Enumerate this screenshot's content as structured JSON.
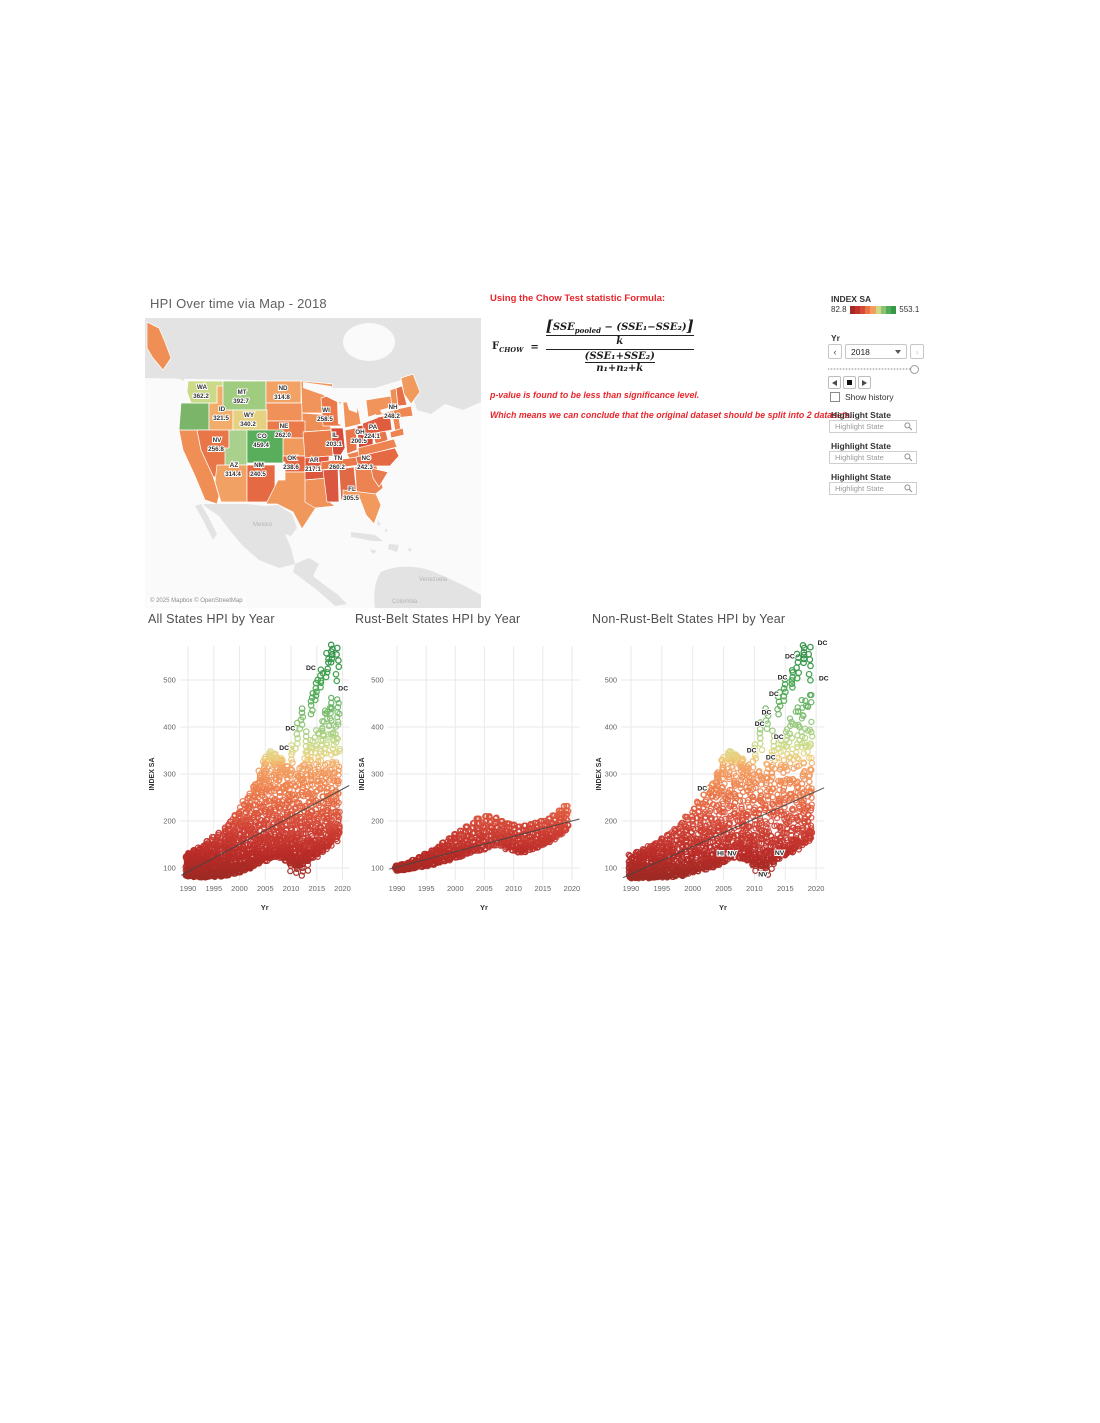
{
  "map": {
    "title": "HPI Over time via Map  - 2018",
    "attribution": "© 2025 Mapbox  © OpenStreetMap",
    "states": [
      {
        "abbr": "WA",
        "value": "362.2"
      },
      {
        "abbr": "MT",
        "value": "392.7"
      },
      {
        "abbr": "ND",
        "value": "314.8"
      },
      {
        "abbr": "ID",
        "value": "321.5"
      },
      {
        "abbr": "WY",
        "value": "340.2"
      },
      {
        "abbr": "NE",
        "value": "262.0"
      },
      {
        "abbr": "NV",
        "value": "256.8"
      },
      {
        "abbr": "CO",
        "value": "459.4"
      },
      {
        "abbr": "AZ",
        "value": "314.4"
      },
      {
        "abbr": "NM",
        "value": "240.5"
      },
      {
        "abbr": "OK",
        "value": "238.6"
      },
      {
        "abbr": "AR",
        "value": "217.1"
      },
      {
        "abbr": "TN",
        "value": "260.2"
      },
      {
        "abbr": "NC",
        "value": "242.3"
      },
      {
        "abbr": "WI",
        "value": "258.5"
      },
      {
        "abbr": "IL",
        "value": "203.1"
      },
      {
        "abbr": "OH",
        "value": "200.5"
      },
      {
        "abbr": "PA",
        "value": "224.1"
      },
      {
        "abbr": "NH",
        "value": "248.2"
      },
      {
        "abbr": "FL",
        "value": "305.5"
      }
    ],
    "unlabeled_fills": {
      "CA": "#ef8f55",
      "OR": "#7ab56a",
      "UT": "#a9d08c",
      "SD": "#f09159",
      "KS": "#f09a5e",
      "TX": "#f0985c",
      "MN": "#f0945c",
      "IA": "#ef8f58",
      "MO": "#ea7d4c",
      "LA": "#ef9159",
      "MS": "#da5742",
      "AL": "#e06a46",
      "GA": "#ec8350",
      "SC": "#e87c4e",
      "VA": "#ec8350",
      "WV": "#e8764a",
      "KY": "#ec8350",
      "IN": "#e8764a",
      "MI": "#f0945c",
      "NY": "#f0945c",
      "NJ": "#ee8752",
      "MD": "#ec8350",
      "MA": "#ee8752",
      "VT": "#ef8f58",
      "ME": "#f09a5e",
      "AK": "#ef8f55"
    },
    "place_labels": [
      "Mexico",
      "Venezuela",
      "Colombia"
    ]
  },
  "notes": {
    "heading": "Using the Chow Test statistic Formula:",
    "p_value": "p-value is found to be less than significance level.",
    "conclusion": "Which means we can conclude that the original dataset should be split into 2 datasets."
  },
  "formula": {
    "lhs": "F",
    "lhs_sub": "CHOW",
    "equals": "=",
    "lbracket": "[",
    "rbracket": "]",
    "sse": "SSE",
    "pooled_sub": "pooled",
    "num_rest": " − (SSE₁−SSE₂)",
    "k": "k",
    "den_top": "(SSE₁+SSE₂)",
    "den_bot": "n₁+n₂+k"
  },
  "legend": {
    "title": "INDEX SA",
    "min": "82.8",
    "max": "553.1"
  },
  "controls": {
    "yr_label": "Yr",
    "year": "2018",
    "prev": "‹",
    "next": "›",
    "show_history": "Show history",
    "highlight_label": "Highlight State",
    "highlight_placeholder": "Highlight State"
  },
  "color_scale": [
    [
      82.8,
      "#9e2a25"
    ],
    [
      130,
      "#b92b27"
    ],
    [
      170,
      "#c93a30"
    ],
    [
      200,
      "#d64a38"
    ],
    [
      230,
      "#e2603f"
    ],
    [
      255,
      "#e97547"
    ],
    [
      280,
      "#ef8750"
    ],
    [
      305,
      "#f29a5d"
    ],
    [
      318,
      "#f2a466"
    ],
    [
      332,
      "#eec873"
    ],
    [
      345,
      "#e0d78a"
    ],
    [
      365,
      "#c8da87"
    ],
    [
      395,
      "#9ccb7d"
    ],
    [
      430,
      "#78bb6c"
    ],
    [
      465,
      "#53ab58"
    ],
    [
      505,
      "#3da14c"
    ],
    [
      553.1,
      "#2e9145"
    ]
  ],
  "chart_data": [
    {
      "type": "scatter",
      "title": "All States HPI by Year",
      "xlabel": "Yr",
      "ylabel": "INDEX SA",
      "x_ticks": [
        1990,
        1995,
        2000,
        2005,
        2010,
        2015,
        2020
      ],
      "y_ticks": [
        100,
        200,
        300,
        400,
        500
      ],
      "x_range": [
        1988.4,
        2021.4
      ],
      "ylim": [
        60,
        585
      ],
      "n_series": 34,
      "skew": 1.7,
      "reps": 2,
      "envelope": [
        [
          1990,
          83,
          132
        ],
        [
          1991,
          83,
          138
        ],
        [
          1992,
          82,
          144
        ],
        [
          1993,
          82,
          150
        ],
        [
          1994,
          83,
          157
        ],
        [
          1995,
          83,
          166
        ],
        [
          1996,
          84,
          175
        ],
        [
          1997,
          85,
          186
        ],
        [
          1998,
          87,
          199
        ],
        [
          1999,
          90,
          213
        ],
        [
          2000,
          93,
          229
        ],
        [
          2001,
          97,
          244
        ],
        [
          2002,
          101,
          259
        ],
        [
          2003,
          106,
          278
        ],
        [
          2004,
          111,
          302
        ],
        [
          2005,
          117,
          332
        ],
        [
          2006,
          123,
          347
        ],
        [
          2007,
          126,
          342
        ],
        [
          2008,
          124,
          330
        ],
        [
          2009,
          118,
          312
        ],
        [
          2010,
          112,
          314
        ],
        [
          2011,
          108,
          306
        ],
        [
          2012,
          110,
          322
        ],
        [
          2013,
          117,
          352
        ],
        [
          2014,
          124,
          372
        ],
        [
          2015,
          131,
          395
        ],
        [
          2016,
          139,
          418
        ],
        [
          2017,
          148,
          442
        ],
        [
          2018,
          158,
          462
        ],
        [
          2019,
          168,
          468
        ]
      ],
      "dc": [
        [
          2003,
          252,
          278
        ],
        [
          2004,
          268,
          305
        ],
        [
          2005,
          300,
          335
        ],
        [
          2006,
          330,
          348
        ],
        [
          2007,
          328,
          342
        ],
        [
          2008,
          308,
          332
        ],
        [
          2009,
          298,
          318
        ],
        [
          2010,
          325,
          362
        ],
        [
          2011,
          352,
          408
        ],
        [
          2012,
          398,
          438
        ],
        [
          2013,
          338,
          392
        ],
        [
          2014,
          428,
          472
        ],
        [
          2015,
          458,
          500
        ],
        [
          2016,
          486,
          522
        ],
        [
          2017,
          505,
          556
        ],
        [
          2018,
          538,
          575
        ],
        [
          2019,
          500,
          570
        ]
      ],
      "nv": [
        [
          2008,
          150,
          190
        ],
        [
          2009,
          118,
          152
        ],
        [
          2010,
          95,
          128
        ],
        [
          2011,
          88,
          112
        ],
        [
          2012,
          85,
          104
        ],
        [
          2013,
          96,
          128
        ],
        [
          2014,
          124,
          150
        ],
        [
          2015,
          126,
          144
        ],
        [
          2016,
          132,
          152
        ],
        [
          2017,
          140,
          160
        ],
        [
          2018,
          150,
          168
        ],
        [
          2019,
          158,
          176
        ]
      ],
      "trend": [
        [
          1990,
          92
        ],
        [
          2020,
          268
        ]
      ],
      "annotations": [
        {
          "label": "DC",
          "year": 2015.6,
          "value": 527,
          "side": "left"
        },
        {
          "label": "DC",
          "year": 2018.4,
          "value": 483,
          "side": "right"
        },
        {
          "label": "DC",
          "year": 2011.6,
          "value": 398,
          "side": "left"
        },
        {
          "label": "DC",
          "year": 2010.4,
          "value": 357,
          "side": "left"
        }
      ]
    },
    {
      "type": "scatter",
      "title": "Rust-Belt States HPI by Year",
      "xlabel": "Yr",
      "ylabel": "INDEX SA",
      "x_ticks": [
        1990,
        1995,
        2000,
        2005,
        2010,
        2015,
        2020
      ],
      "y_ticks": [
        100,
        200,
        300,
        400,
        500
      ],
      "x_range": [
        1988.4,
        2021.4
      ],
      "ylim": [
        60,
        585
      ],
      "n_series": 8,
      "skew": 1.25,
      "reps": 4,
      "envelope": [
        [
          1990,
          95,
          105
        ],
        [
          1991,
          96,
          108
        ],
        [
          1992,
          98,
          112
        ],
        [
          1993,
          100,
          117
        ],
        [
          1994,
          103,
          123
        ],
        [
          1995,
          105,
          130
        ],
        [
          1996,
          108,
          137
        ],
        [
          1997,
          111,
          145
        ],
        [
          1998,
          114,
          154
        ],
        [
          1999,
          118,
          163
        ],
        [
          2000,
          122,
          172
        ],
        [
          2001,
          126,
          180
        ],
        [
          2002,
          130,
          188
        ],
        [
          2003,
          134,
          196
        ],
        [
          2004,
          138,
          205
        ],
        [
          2005,
          142,
          210
        ],
        [
          2006,
          146,
          210
        ],
        [
          2007,
          150,
          207
        ],
        [
          2008,
          148,
          200
        ],
        [
          2009,
          142,
          195
        ],
        [
          2010,
          138,
          192
        ],
        [
          2011,
          134,
          188
        ],
        [
          2012,
          136,
          190
        ],
        [
          2013,
          140,
          193
        ],
        [
          2014,
          145,
          196
        ],
        [
          2015,
          150,
          200
        ],
        [
          2016,
          156,
          205
        ],
        [
          2017,
          163,
          212
        ],
        [
          2018,
          172,
          222
        ],
        [
          2019,
          182,
          232
        ]
      ],
      "dc": [],
      "nv": [],
      "trend": [
        [
          1990,
          102
        ],
        [
          2020,
          200
        ]
      ],
      "annotations": []
    },
    {
      "type": "scatter",
      "title": "Non-Rust-Belt States HPI by Year",
      "xlabel": "Yr",
      "ylabel": "INDEX SA",
      "x_ticks": [
        1990,
        1995,
        2000,
        2005,
        2010,
        2015,
        2020
      ],
      "y_ticks": [
        100,
        200,
        300,
        400,
        500
      ],
      "x_range": [
        1988.4,
        2021.4
      ],
      "ylim": [
        60,
        585
      ],
      "n_series": 30,
      "skew": 1.7,
      "reps": 2,
      "envelope": [
        [
          1990,
          80,
          128
        ],
        [
          1991,
          80,
          134
        ],
        [
          1992,
          80,
          140
        ],
        [
          1993,
          80,
          147
        ],
        [
          1994,
          81,
          154
        ],
        [
          1995,
          81,
          163
        ],
        [
          1996,
          82,
          172
        ],
        [
          1997,
          83,
          183
        ],
        [
          1998,
          85,
          196
        ],
        [
          1999,
          88,
          210
        ],
        [
          2000,
          91,
          226
        ],
        [
          2001,
          95,
          241
        ],
        [
          2002,
          99,
          256
        ],
        [
          2003,
          104,
          276
        ],
        [
          2004,
          109,
          300
        ],
        [
          2005,
          115,
          332
        ],
        [
          2006,
          121,
          347
        ],
        [
          2007,
          124,
          342
        ],
        [
          2008,
          122,
          330
        ],
        [
          2009,
          116,
          312
        ],
        [
          2010,
          110,
          314
        ],
        [
          2011,
          106,
          306
        ],
        [
          2012,
          108,
          322
        ],
        [
          2013,
          115,
          352
        ],
        [
          2014,
          122,
          372
        ],
        [
          2015,
          129,
          395
        ],
        [
          2016,
          137,
          418
        ],
        [
          2017,
          146,
          442
        ],
        [
          2018,
          156,
          462
        ],
        [
          2019,
          166,
          468
        ]
      ],
      "dc": [
        [
          2003,
          252,
          278
        ],
        [
          2004,
          268,
          305
        ],
        [
          2005,
          300,
          335
        ],
        [
          2006,
          330,
          348
        ],
        [
          2007,
          328,
          342
        ],
        [
          2008,
          308,
          332
        ],
        [
          2009,
          298,
          318
        ],
        [
          2010,
          325,
          362
        ],
        [
          2011,
          352,
          408
        ],
        [
          2012,
          398,
          438
        ],
        [
          2013,
          338,
          392
        ],
        [
          2014,
          428,
          472
        ],
        [
          2015,
          458,
          500
        ],
        [
          2016,
          486,
          522
        ],
        [
          2017,
          505,
          556
        ],
        [
          2018,
          538,
          575
        ],
        [
          2019,
          500,
          570
        ]
      ],
      "nv": [
        [
          2008,
          150,
          190
        ],
        [
          2009,
          118,
          152
        ],
        [
          2010,
          95,
          128
        ],
        [
          2011,
          88,
          112
        ],
        [
          2012,
          85,
          104
        ],
        [
          2013,
          96,
          128
        ],
        [
          2014,
          124,
          150
        ],
        [
          2015,
          126,
          144
        ],
        [
          2016,
          132,
          152
        ],
        [
          2017,
          140,
          160
        ],
        [
          2018,
          150,
          168
        ],
        [
          2019,
          158,
          176
        ]
      ],
      "trend": [
        [
          1990,
          87
        ],
        [
          2020,
          263
        ]
      ],
      "annotations": [
        {
          "label": "DC",
          "year": 2019.6,
          "value": 580,
          "side": "right"
        },
        {
          "label": "DC",
          "year": 2017.2,
          "value": 551,
          "side": "left"
        },
        {
          "label": "DC",
          "year": 2016.0,
          "value": 507,
          "side": "left"
        },
        {
          "label": "DC",
          "year": 2019.8,
          "value": 505,
          "side": "right"
        },
        {
          "label": "DC",
          "year": 2014.6,
          "value": 472,
          "side": "left"
        },
        {
          "label": "DC",
          "year": 2013.4,
          "value": 432,
          "side": "left"
        },
        {
          "label": "DC",
          "year": 2012.3,
          "value": 408,
          "side": "left"
        },
        {
          "label": "DC",
          "year": 2015.4,
          "value": 380,
          "side": "left"
        },
        {
          "label": "DC",
          "year": 2011.0,
          "value": 351,
          "side": "left"
        },
        {
          "label": "DC",
          "year": 2014.1,
          "value": 336,
          "side": "left"
        },
        {
          "label": "DC",
          "year": 2003.0,
          "value": 270,
          "side": "left"
        },
        {
          "label": "HI",
          "year": 2005.7,
          "value": 132,
          "side": "left"
        },
        {
          "label": "NV",
          "year": 2007.8,
          "value": 132,
          "side": "left"
        },
        {
          "label": "NV",
          "year": 2015.5,
          "value": 133,
          "side": "left"
        },
        {
          "label": "NV",
          "year": 2012.8,
          "value": 87,
          "side": "left"
        }
      ]
    }
  ]
}
